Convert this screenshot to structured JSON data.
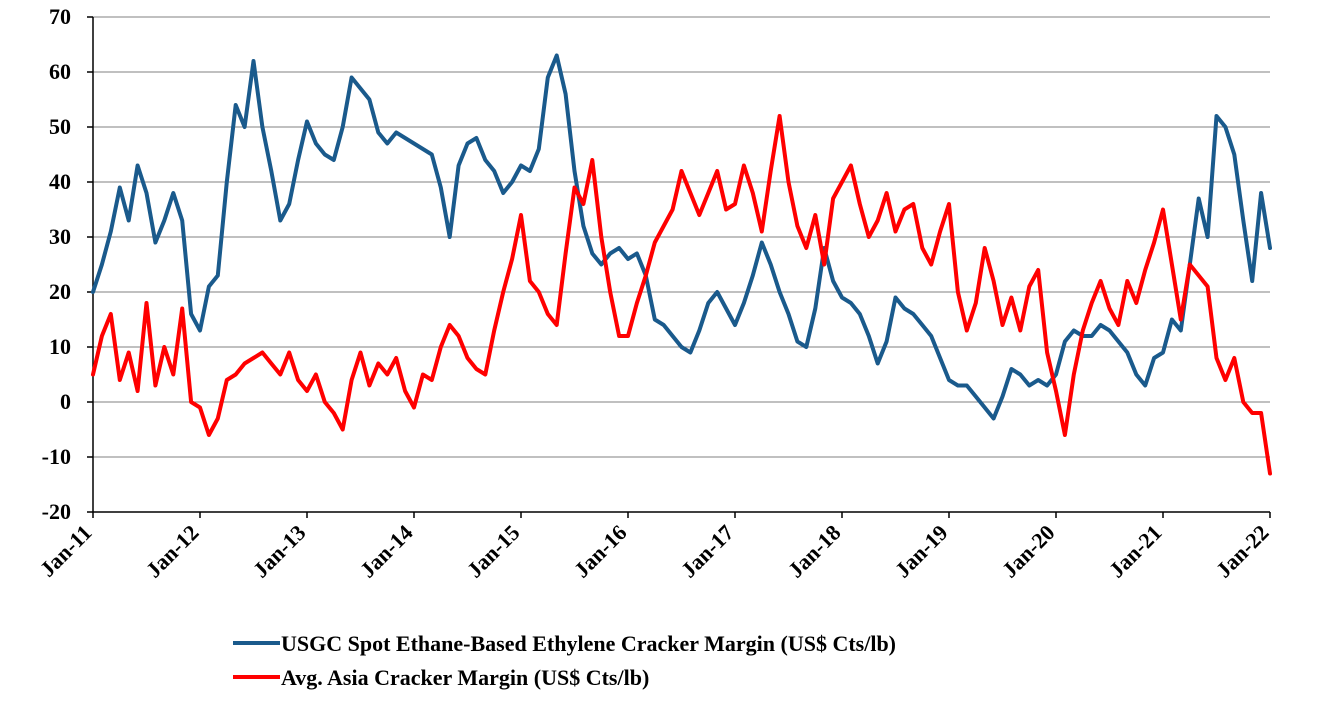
{
  "chart_data": {
    "type": "line",
    "title": "",
    "xlabel": "",
    "ylabel": "",
    "ylim": [
      -20,
      70
    ],
    "yticks": [
      -20,
      -10,
      0,
      10,
      20,
      30,
      40,
      50,
      60,
      70
    ],
    "xlim": [
      "2011-01",
      "2022-01"
    ],
    "xticks": [
      "Jan-11",
      "Jan-12",
      "Jan-13",
      "Jan-14",
      "Jan-15",
      "Jan-16",
      "Jan-17",
      "Jan-18",
      "Jan-19",
      "Jan-20",
      "Jan-21",
      "Jan-22"
    ],
    "grid": "horizontal",
    "legend": "bottom",
    "series": [
      {
        "name": "USGC Spot Ethane-Based Ethylene Cracker Margin (US$ Cts/lb)",
        "color": "#1a5a8c",
        "x": [
          "2011-01",
          "2011-02",
          "2011-03",
          "2011-04",
          "2011-05",
          "2011-06",
          "2011-07",
          "2011-08",
          "2011-09",
          "2011-10",
          "2011-11",
          "2011-12",
          "2012-01",
          "2012-02",
          "2012-03",
          "2012-04",
          "2012-05",
          "2012-06",
          "2012-07",
          "2012-08",
          "2012-09",
          "2012-10",
          "2012-11",
          "2012-12",
          "2013-01",
          "2013-02",
          "2013-03",
          "2013-04",
          "2013-05",
          "2013-06",
          "2013-07",
          "2013-08",
          "2013-09",
          "2013-10",
          "2013-11",
          "2013-12",
          "2014-01",
          "2014-02",
          "2014-03",
          "2014-04",
          "2014-05",
          "2014-06",
          "2014-07",
          "2014-08",
          "2014-09",
          "2014-10",
          "2014-11",
          "2014-12",
          "2015-01",
          "2015-02",
          "2015-03",
          "2015-04",
          "2015-05",
          "2015-06",
          "2015-07",
          "2015-08",
          "2015-09",
          "2015-10",
          "2015-11",
          "2015-12",
          "2016-01",
          "2016-02",
          "2016-03",
          "2016-04",
          "2016-05",
          "2016-06",
          "2016-07",
          "2016-08",
          "2016-09",
          "2016-10",
          "2016-11",
          "2016-12",
          "2017-01",
          "2017-02",
          "2017-03",
          "2017-04",
          "2017-05",
          "2017-06",
          "2017-07",
          "2017-08",
          "2017-09",
          "2017-10",
          "2017-11",
          "2017-12",
          "2018-01",
          "2018-02",
          "2018-03",
          "2018-04",
          "2018-05",
          "2018-06",
          "2018-07",
          "2018-08",
          "2018-09",
          "2018-10",
          "2018-11",
          "2018-12",
          "2019-01",
          "2019-02",
          "2019-03",
          "2019-04",
          "2019-05",
          "2019-06",
          "2019-07",
          "2019-08",
          "2019-09",
          "2019-10",
          "2019-11",
          "2019-12",
          "2020-01",
          "2020-02",
          "2020-03",
          "2020-04",
          "2020-05",
          "2020-06",
          "2020-07",
          "2020-08",
          "2020-09",
          "2020-10",
          "2020-11",
          "2020-12",
          "2021-01",
          "2021-02",
          "2021-03",
          "2021-04",
          "2021-05",
          "2021-06",
          "2021-07",
          "2021-08",
          "2021-09",
          "2021-10",
          "2021-11",
          "2021-12",
          "2022-01"
        ],
        "values": [
          20,
          25,
          31,
          39,
          33,
          43,
          38,
          29,
          33,
          38,
          33,
          16,
          13,
          21,
          23,
          40,
          54,
          50,
          62,
          50,
          42,
          33,
          36,
          44,
          51,
          47,
          45,
          44,
          50,
          59,
          57,
          55,
          49,
          47,
          49,
          48,
          47,
          46,
          45,
          39,
          30,
          43,
          47,
          48,
          44,
          42,
          38,
          40,
          43,
          42,
          46,
          59,
          63,
          56,
          42,
          32,
          27,
          25,
          27,
          28,
          26,
          27,
          23,
          15,
          14,
          12,
          10,
          9,
          13,
          18,
          20,
          17,
          14,
          18,
          23,
          29,
          25,
          20,
          16,
          11,
          10,
          17,
          28,
          22,
          19,
          18,
          16,
          12,
          7,
          11,
          19,
          17,
          16,
          14,
          12,
          8,
          4,
          3,
          3,
          1,
          -1,
          -3,
          1,
          6,
          5,
          3,
          4,
          3,
          5,
          11,
          13,
          12,
          12,
          14,
          13,
          11,
          9,
          5,
          3,
          8,
          9,
          15,
          13,
          25,
          37,
          30,
          52,
          50,
          45,
          33,
          22,
          38,
          28
        ]
      },
      {
        "name": "Avg. Asia Cracker Margin (US$ Cts/lb)",
        "color": "#ff0000",
        "x": [
          "2011-01",
          "2011-02",
          "2011-03",
          "2011-04",
          "2011-05",
          "2011-06",
          "2011-07",
          "2011-08",
          "2011-09",
          "2011-10",
          "2011-11",
          "2011-12",
          "2012-01",
          "2012-02",
          "2012-03",
          "2012-04",
          "2012-05",
          "2012-06",
          "2012-07",
          "2012-08",
          "2012-09",
          "2012-10",
          "2012-11",
          "2012-12",
          "2013-01",
          "2013-02",
          "2013-03",
          "2013-04",
          "2013-05",
          "2013-06",
          "2013-07",
          "2013-08",
          "2013-09",
          "2013-10",
          "2013-11",
          "2013-12",
          "2014-01",
          "2014-02",
          "2014-03",
          "2014-04",
          "2014-05",
          "2014-06",
          "2014-07",
          "2014-08",
          "2014-09",
          "2014-10",
          "2014-11",
          "2014-12",
          "2015-01",
          "2015-02",
          "2015-03",
          "2015-04",
          "2015-05",
          "2015-06",
          "2015-07",
          "2015-08",
          "2015-09",
          "2015-10",
          "2015-11",
          "2015-12",
          "2016-01",
          "2016-02",
          "2016-03",
          "2016-04",
          "2016-05",
          "2016-06",
          "2016-07",
          "2016-08",
          "2016-09",
          "2016-10",
          "2016-11",
          "2016-12",
          "2017-01",
          "2017-02",
          "2017-03",
          "2017-04",
          "2017-05",
          "2017-06",
          "2017-07",
          "2017-08",
          "2017-09",
          "2017-10",
          "2017-11",
          "2017-12",
          "2018-01",
          "2018-02",
          "2018-03",
          "2018-04",
          "2018-05",
          "2018-06",
          "2018-07",
          "2018-08",
          "2018-09",
          "2018-10",
          "2018-11",
          "2018-12",
          "2019-01",
          "2019-02",
          "2019-03",
          "2019-04",
          "2019-05",
          "2019-06",
          "2019-07",
          "2019-08",
          "2019-09",
          "2019-10",
          "2019-11",
          "2019-12",
          "2020-01",
          "2020-02",
          "2020-03",
          "2020-04",
          "2020-05",
          "2020-06",
          "2020-07",
          "2020-08",
          "2020-09",
          "2020-10",
          "2020-11",
          "2020-12",
          "2021-01",
          "2021-02",
          "2021-03",
          "2021-04",
          "2021-05",
          "2021-06",
          "2021-07",
          "2021-08",
          "2021-09",
          "2021-10",
          "2021-11",
          "2021-12",
          "2022-01"
        ],
        "values": [
          5,
          12,
          16,
          4,
          9,
          2,
          18,
          3,
          10,
          5,
          17,
          0,
          -1,
          -6,
          -3,
          4,
          5,
          7,
          8,
          9,
          7,
          5,
          9,
          4,
          2,
          5,
          0,
          -2,
          -5,
          4,
          9,
          3,
          7,
          5,
          8,
          2,
          -1,
          5,
          4,
          10,
          14,
          12,
          8,
          6,
          5,
          13,
          20,
          26,
          34,
          22,
          20,
          16,
          14,
          27,
          39,
          36,
          44,
          30,
          20,
          12,
          12,
          18,
          23,
          29,
          32,
          35,
          42,
          38,
          34,
          38,
          42,
          35,
          36,
          43,
          38,
          31,
          42,
          52,
          40,
          32,
          28,
          34,
          25,
          37,
          40,
          43,
          36,
          30,
          33,
          38,
          31,
          35,
          36,
          28,
          25,
          31,
          36,
          20,
          13,
          18,
          28,
          22,
          14,
          19,
          13,
          21,
          24,
          9,
          2,
          -6,
          5,
          13,
          18,
          22,
          17,
          14,
          22,
          18,
          24,
          29,
          35,
          25,
          15,
          25,
          23,
          21,
          8,
          4,
          8,
          0,
          -2,
          -2,
          -13
        ]
      }
    ]
  }
}
